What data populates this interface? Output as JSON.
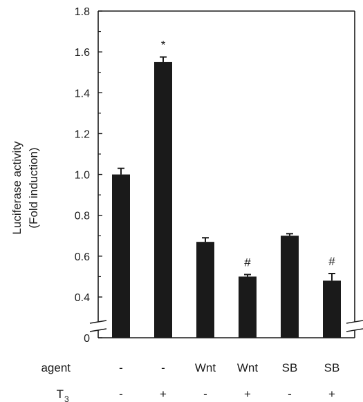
{
  "chart_data": {
    "type": "bar",
    "ylabel_line1": "Luciferase activity",
    "ylabel_line2": "(Fold induction)",
    "ylim": [
      0.3,
      1.8
    ],
    "axis_break": true,
    "y_ticks": [
      0.4,
      0.6,
      0.8,
      1.0,
      1.2,
      1.4,
      1.6,
      1.8
    ],
    "y_tick_labels": [
      "0.4",
      "0.6",
      "0.8",
      "1.0",
      "1.2",
      "1.4",
      "1.6",
      "1.8"
    ],
    "zero_label": "0",
    "values": [
      1.0,
      1.55,
      0.67,
      0.5,
      0.7,
      0.48
    ],
    "errors": [
      0.03,
      0.025,
      0.02,
      0.01,
      0.01,
      0.035
    ],
    "markers": [
      "",
      "*",
      "",
      "#",
      "",
      "#"
    ],
    "bar_color": "#1a1a1a",
    "row_labels": {
      "agent": "agent",
      "t3_main": "T",
      "t3_sub": "3"
    },
    "agent_values": [
      "-",
      "-",
      "Wnt",
      "Wnt",
      "SB",
      "SB"
    ],
    "t3_values": [
      "-",
      "+",
      "-",
      "+",
      "-",
      "+"
    ]
  }
}
